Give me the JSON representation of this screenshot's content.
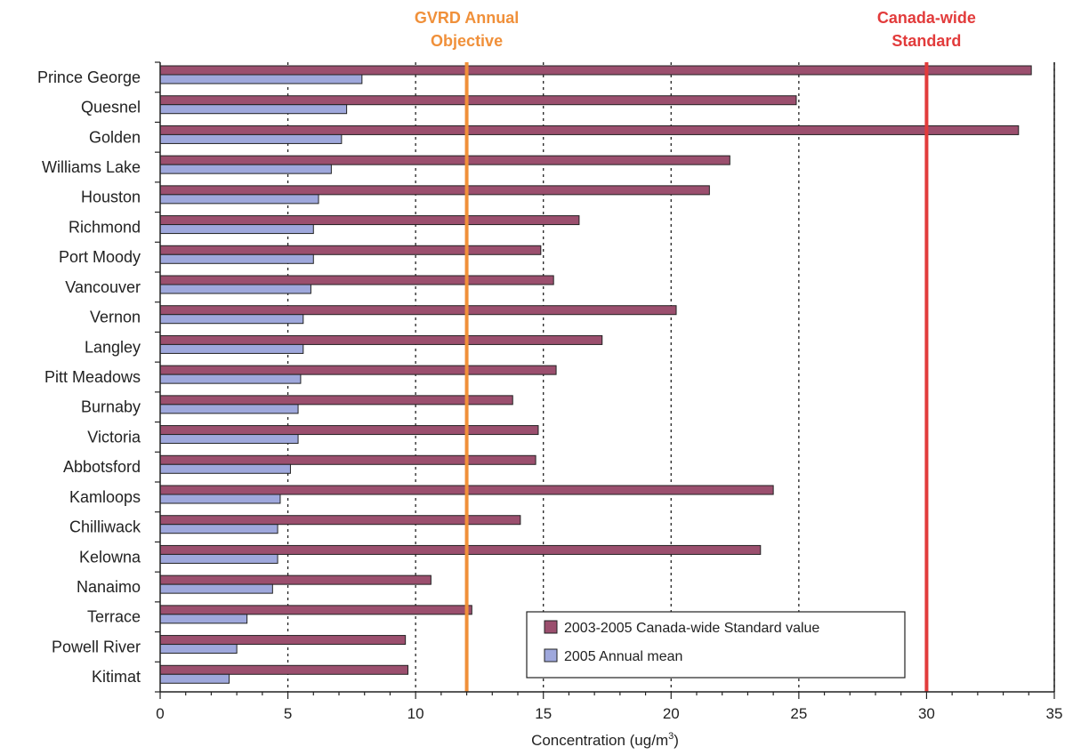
{
  "chart_data": {
    "type": "bar",
    "orientation": "horizontal",
    "categories": [
      "Prince George",
      "Quesnel",
      "Golden",
      "Williams Lake",
      "Houston",
      "Richmond",
      "Port Moody",
      "Vancouver",
      "Vernon",
      "Langley",
      "Pitt Meadows",
      "Burnaby",
      "Victoria",
      "Abbotsford",
      "Kamloops",
      "Chilliwack",
      "Kelowna",
      "Nanaimo",
      "Terrace",
      "Powell River",
      "Kitimat"
    ],
    "series": [
      {
        "name": "2003-2005 Canada-wide Standard value",
        "color": "#9b4f6e",
        "values": [
          34.1,
          24.9,
          33.6,
          22.3,
          21.5,
          16.4,
          14.9,
          15.4,
          20.2,
          17.3,
          15.5,
          13.8,
          14.8,
          14.7,
          24.0,
          14.1,
          23.5,
          10.6,
          12.2,
          9.6,
          9.7
        ]
      },
      {
        "name": "2005 Annual mean",
        "color": "#9fa8dc",
        "values": [
          7.9,
          7.3,
          7.1,
          6.7,
          6.2,
          6.0,
          6.0,
          5.9,
          5.6,
          5.6,
          5.5,
          5.4,
          5.4,
          5.1,
          4.7,
          4.6,
          4.6,
          4.4,
          3.4,
          3.0,
          2.7
        ]
      }
    ],
    "xlabel": "Concentration (ug/m",
    "xlabel_sup": "3",
    "xlabel_suffix": ")",
    "xlim": [
      0,
      35
    ],
    "xticks": [
      0,
      5,
      10,
      15,
      20,
      25,
      30,
      35
    ],
    "grid": "vertical dotted",
    "reference_lines": [
      {
        "value": 12,
        "label_lines": [
          "GVRD Annual",
          "Objective"
        ],
        "color": "#f0903a"
      },
      {
        "value": 30,
        "label_lines": [
          "Canada-wide",
          "Standard"
        ],
        "color": "#e23b3b"
      }
    ],
    "legend_position": "bottom-right"
  }
}
